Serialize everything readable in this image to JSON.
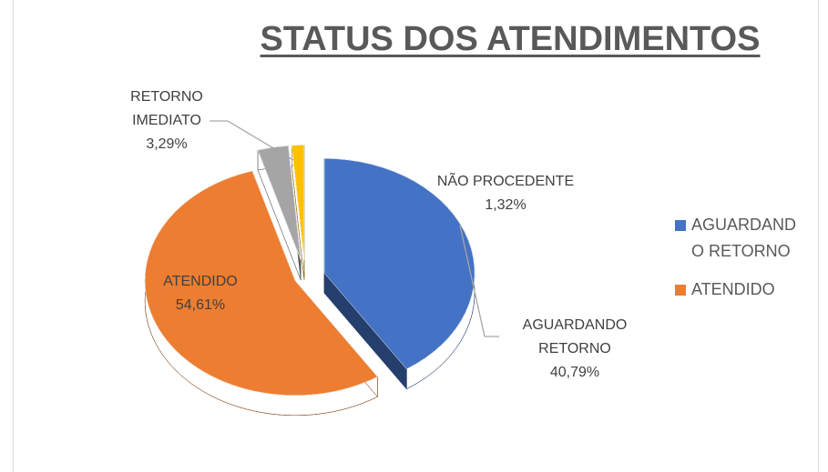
{
  "chart_data": {
    "type": "pie",
    "title": "STATUS DOS ATENDIMENTOS",
    "categories": [
      "AGUARDANDO RETORNO",
      "ATENDIDO",
      "RETORNO IMEDIATO",
      "NÃO PROCEDENTE"
    ],
    "values": [
      40.79,
      54.61,
      3.29,
      1.32
    ],
    "value_labels": [
      "40,79%",
      "54,61%",
      "3,29%",
      "1,32%"
    ],
    "colors": [
      "#4472c4",
      "#ed7d31",
      "#a5a5a5",
      "#ffc000"
    ],
    "legend": [
      "AGUARDANDO RETORNO",
      "ATENDIDO"
    ],
    "legend_position": "right"
  }
}
